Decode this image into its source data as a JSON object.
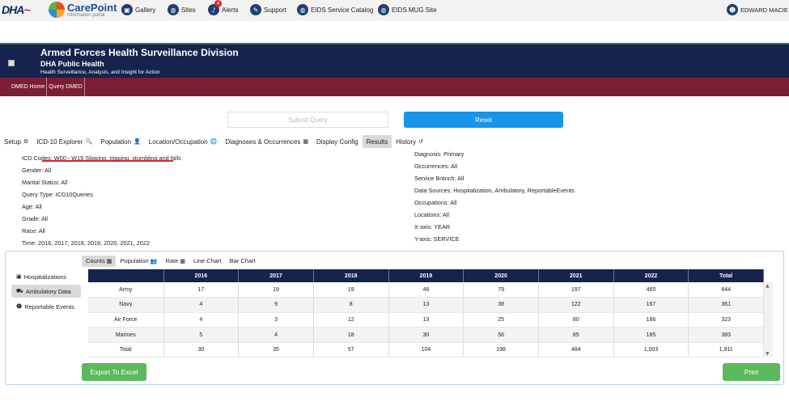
{
  "topbar": {
    "logo_dha": "DHA",
    "logo_name": "CarePoint",
    "logo_sub": "information portal",
    "nav": [
      {
        "label": "Gallery",
        "icon": "images-icon"
      },
      {
        "label": "Sites",
        "icon": "globe-icon"
      },
      {
        "label": "Alerts",
        "icon": "bell-icon",
        "badge": "4"
      },
      {
        "label": "Support",
        "icon": "wrench-icon"
      },
      {
        "label": "EIDS Service Catalog",
        "icon": "globe-icon"
      },
      {
        "label": "EIDS MUG Site",
        "icon": "globe-icon"
      }
    ],
    "user": "EDWARD MACIE"
  },
  "header": {
    "title": "Armed Forces Health Surveillance Division",
    "subtitle": "DHA Public Health",
    "tagline": "Health Surveillance, Analysis, and Insight for Action"
  },
  "subnav": [
    "DMED Home",
    "Query DMED"
  ],
  "actions": {
    "submit": "Submit Query",
    "reset": "Reset"
  },
  "tabs": [
    {
      "label": "Setup",
      "icon": "⚙"
    },
    {
      "label": "ICD-10 Explorer",
      "icon": "🔍"
    },
    {
      "label": "Population",
      "icon": "👤"
    },
    {
      "label": "Location/Occupation",
      "icon": "🌐"
    },
    {
      "label": "Diagnoses & Occurrences",
      "icon": "▦"
    },
    {
      "label": "Display Config",
      "icon": ""
    },
    {
      "label": "Results",
      "icon": ""
    },
    {
      "label": "History",
      "icon": "↺"
    }
  ],
  "summary_left": [
    {
      "label": "ICD Codes:",
      "value": "W00 - W19 Slipping, tripping, stumbling and falls"
    },
    {
      "label": "Gender:",
      "value": "All"
    },
    {
      "label": "Marital Status:",
      "value": "All"
    },
    {
      "label": "Query Type:",
      "value": "ICD10Queries"
    },
    {
      "label": "Age:",
      "value": "All"
    },
    {
      "label": "Grade:",
      "value": "All"
    },
    {
      "label": "Race:",
      "value": "All"
    },
    {
      "label": "Time:",
      "value": "2016, 2017, 2018, 2019, 2020, 2021, 2022"
    }
  ],
  "summary_right": [
    {
      "label": "Diagnosis:",
      "value": "Primary"
    },
    {
      "label": "Occurrences:",
      "value": "All"
    },
    {
      "label": "Service Branch:",
      "value": "All"
    },
    {
      "label": "Data Sources:",
      "value": "Hospitalization, Ambulatory, ReportableEvents"
    },
    {
      "label": "Occupations:",
      "value": "All"
    },
    {
      "label": "Locations:",
      "value": "All"
    },
    {
      "label": "X-axis:",
      "value": "YEAR"
    },
    {
      "label": "Y-axis:",
      "value": "SERVICE"
    }
  ],
  "sidebar": [
    {
      "label": "Hospitalizations",
      "icon": "hospital-icon"
    },
    {
      "label": "Ambulatory Data",
      "icon": "ambulance-icon"
    },
    {
      "label": "Reportable Events",
      "icon": "users-icon"
    }
  ],
  "result_tabs": [
    {
      "label": "Counts",
      "icon": "▦"
    },
    {
      "label": "Population",
      "icon": "👥"
    },
    {
      "label": "Rate",
      "icon": "▦"
    },
    {
      "label": "Line Chart",
      "icon": ""
    },
    {
      "label": "Bar Chart",
      "icon": ""
    }
  ],
  "table": {
    "headers": [
      "",
      "2016",
      "2017",
      "2018",
      "2019",
      "2020",
      "2021",
      "2022",
      "Total"
    ],
    "rows": [
      [
        "Army",
        "17",
        "19",
        "19",
        "48",
        "79",
        "197",
        "465",
        "844"
      ],
      [
        "Navy",
        "4",
        "9",
        "8",
        "13",
        "38",
        "122",
        "167",
        "361"
      ],
      [
        "Air Force",
        "4",
        "3",
        "12",
        "13",
        "25",
        "80",
        "186",
        "323"
      ],
      [
        "Marines",
        "5",
        "4",
        "18",
        "30",
        "56",
        "85",
        "185",
        "383"
      ],
      [
        "Total",
        "30",
        "35",
        "57",
        "104",
        "198",
        "484",
        "1,003",
        "1,911"
      ]
    ]
  },
  "buttons": {
    "export": "Export To Excel",
    "print": "Print"
  }
}
